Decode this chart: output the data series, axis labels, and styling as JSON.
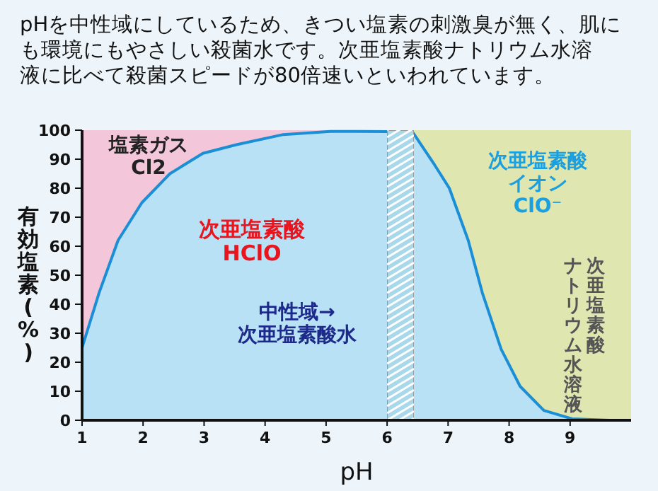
{
  "chart_data": {
    "type": "area",
    "title": "pHを中性域にしているため、きつい塩素の刺激臭が無く、肌にも環境にもやさしい殺菌水です。次亜塩素酸ナトリウム水溶液に比べて殺菌スピードが80倍速いといわれています。",
    "xlabel": "pH",
    "ylabel": "有効塩素(%)",
    "xlim": [
      1,
      10
    ],
    "ylim": [
      0,
      100
    ],
    "xticks": [
      1,
      2,
      3,
      4,
      5,
      6,
      7,
      8,
      9
    ],
    "yticks": [
      0,
      10,
      20,
      30,
      40,
      50,
      60,
      70,
      80,
      90,
      100
    ],
    "series": [
      {
        "color": "#1a8fd6",
        "x": [
          1.0,
          1.28,
          1.59,
          1.98,
          2.44,
          2.98,
          3.53,
          4.3,
          5.07,
          6.0,
          6.43,
          6.78,
          7.02,
          7.33,
          7.56,
          7.87,
          8.18,
          8.57,
          9.03,
          9.65,
          10.0
        ],
        "values": [
          25,
          44,
          62,
          75,
          85,
          92,
          95,
          98.5,
          99.6,
          99.5,
          99,
          88,
          80,
          62,
          44,
          24.5,
          11.7,
          3.4,
          0.5,
          0,
          0
        ]
      }
    ],
    "bands": [
      {
        "axis": "x",
        "from": 1,
        "to": 6,
        "color": "#f4c6d9"
      },
      {
        "axis": "x",
        "from": 6,
        "to": 6.44,
        "color": "#a8d8ea"
      },
      {
        "axis": "x",
        "from": 6.44,
        "to": 10,
        "color": "#dfe6b0"
      }
    ],
    "annotations": [
      "塩素ガス\nCl2",
      "次亜塩素酸\nHClO",
      "中性域→\n次亜塩素酸水",
      "次亜塩素酸イオン\nClO⁻",
      "次亜塩素酸",
      "ナトリウム水溶液"
    ]
  }
}
